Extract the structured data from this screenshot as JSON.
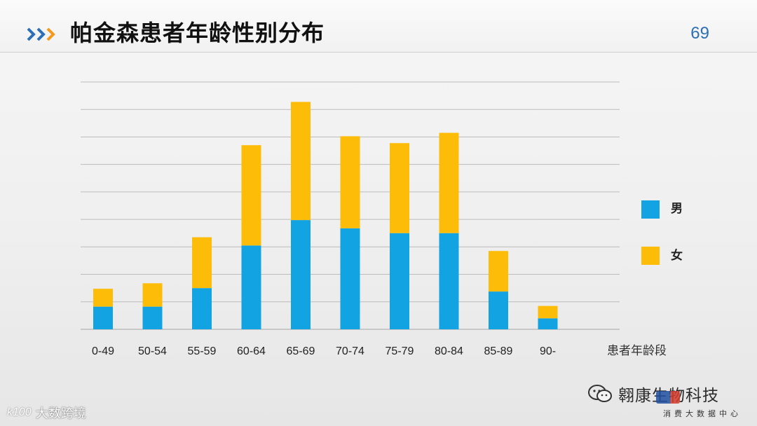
{
  "header": {
    "title": "帕金森患者年龄性别分布",
    "page_number": "69"
  },
  "colors": {
    "male": "#12a3e3",
    "female": "#fdbc07",
    "grid": "#bcbcbc",
    "title_accent_1": "#2c6fb6",
    "title_accent_2": "#f39a1e"
  },
  "icons": {
    "title_prefix": "triple-chevron-icon",
    "watermark_wechat": "wechat-icon"
  },
  "chart_data": {
    "type": "bar",
    "stacked": true,
    "categories": [
      "0-49",
      "50-54",
      "55-59",
      "60-64",
      "65-69",
      "70-74",
      "75-79",
      "80-84",
      "85-89",
      "90-"
    ],
    "series": [
      {
        "name": "男",
        "values": [
          3.3,
          3.3,
          6.0,
          12.2,
          15.9,
          14.7,
          14.0,
          14.0,
          5.5,
          1.6
        ]
      },
      {
        "name": "女",
        "values": [
          2.6,
          3.4,
          7.4,
          14.6,
          17.2,
          13.4,
          13.1,
          14.6,
          5.9,
          1.8
        ]
      }
    ],
    "xlabel": "患者年龄段",
    "ylabel": "",
    "ylim": [
      0,
      36
    ],
    "gridlines": true,
    "y_tick_labels": false,
    "legend_position": "right"
  },
  "watermarks": {
    "left_logo": "k100",
    "left_text": "大数跨境",
    "right_text": "翱康生物科技",
    "stamp_sub": "消费大数据中心"
  }
}
